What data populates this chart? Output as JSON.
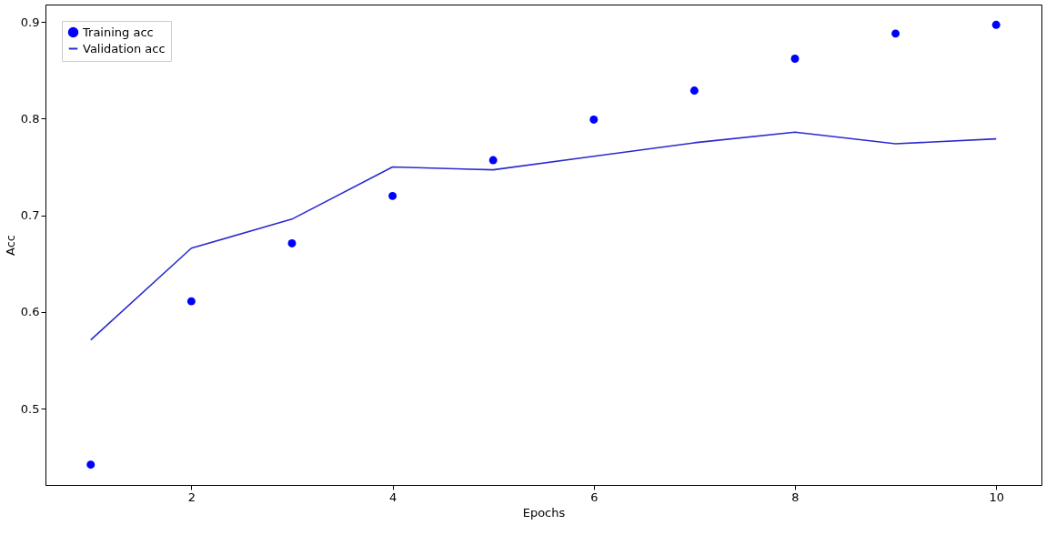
{
  "chart_data": {
    "type": "line",
    "xlabel": "Epochs",
    "ylabel": "Acc",
    "x": [
      1,
      2,
      3,
      4,
      5,
      6,
      7,
      8,
      9,
      10
    ],
    "series": [
      {
        "name": "Training acc",
        "type": "scatter",
        "marker": "circle",
        "color": "#0000ff",
        "values": [
          0.442,
          0.611,
          0.671,
          0.72,
          0.757,
          0.799,
          0.829,
          0.862,
          0.888,
          0.897
        ]
      },
      {
        "name": "Validation acc",
        "color": "#2a2ad0",
        "values": [
          0.571,
          0.666,
          0.696,
          0.75,
          0.747,
          0.761,
          0.775,
          0.786,
          0.774,
          0.779
        ]
      }
    ],
    "xlim": [
      0.55,
      10.45
    ],
    "xticks": [
      2,
      4,
      6,
      8,
      10
    ],
    "ylim": [
      0.421,
      0.918
    ],
    "yticks": [
      0.5,
      0.6,
      0.7,
      0.8,
      0.9
    ],
    "legend": "top left",
    "grid": false
  }
}
